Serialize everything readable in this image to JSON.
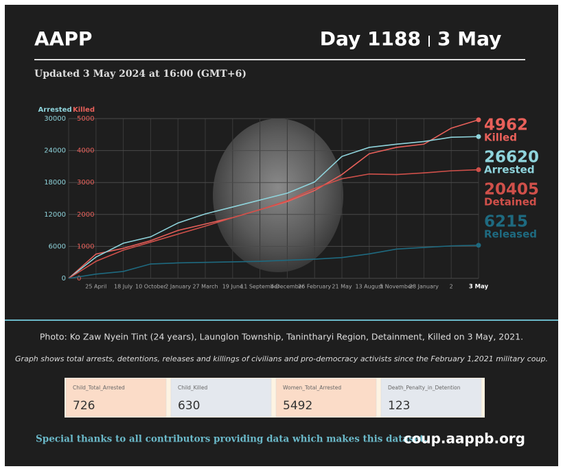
{
  "header": {
    "title": "AAPP",
    "day": "Day 1188",
    "date": "3 May",
    "updated": "Updated 3 May 2024 at 16:00 (GMT+6)"
  },
  "chart_data": {
    "type": "line",
    "y_label": "Arrested",
    "y2_label": "Killed",
    "categories": [
      null,
      "25 April",
      "18 July",
      "10 October",
      "2 January",
      "27 March",
      "19 June",
      "11 September",
      "4 December",
      "26 February",
      "21 May",
      "13 August",
      "5 November",
      "28 January",
      "2",
      "3 May"
    ],
    "ylim": [
      0,
      30000
    ],
    "yticks": [
      0,
      6000,
      12000,
      18000,
      24000,
      30000
    ],
    "y2lim": [
      0,
      5000
    ],
    "y2ticks": [
      0,
      1000,
      2000,
      3000,
      4000,
      5000
    ],
    "grid": true,
    "series": [
      {
        "name": "Killed",
        "color": "#e8605a",
        "axis": "y2",
        "values": [
          0,
          760,
          940,
          1180,
          1500,
          1700,
          1900,
          2150,
          2400,
          2750,
          3250,
          3900,
          4100,
          4200,
          4700,
          4962
        ]
      },
      {
        "name": "Arrested",
        "color": "#8fd4dc",
        "values": [
          0,
          4000,
          6600,
          7800,
          10400,
          12100,
          13400,
          14700,
          16000,
          18100,
          22900,
          24600,
          25200,
          25700,
          26500,
          26620
        ]
      },
      {
        "name": "Detained",
        "color": "#d0504a",
        "values": [
          0,
          3200,
          5300,
          6800,
          8300,
          9800,
          11400,
          12900,
          14600,
          16900,
          18700,
          19600,
          19500,
          19800,
          20200,
          20405
        ]
      },
      {
        "name": "Released",
        "color": "#1e6a80",
        "values": [
          0,
          800,
          1300,
          2700,
          2900,
          3000,
          3100,
          3200,
          3400,
          3600,
          3900,
          4600,
          5500,
          5800,
          6100,
          6215
        ]
      }
    ]
  },
  "caption": "Photo: Ko Zaw Nyein Tint (24 years), Launglon Township, Tanintharyi Region, Detainment, Killed on 3 May, 2021.",
  "note": "Graph shows total arrests, detentions, releases and killings of civilians and pro-democracy activists since the February 1,2021 military coup.",
  "stats": [
    {
      "label": "Child_Total_Arrested",
      "value": 726
    },
    {
      "label": "Child_Killed",
      "value": 630
    },
    {
      "label": "Women_Total_Arrested",
      "value": 5492
    },
    {
      "label": "Death_Penalty_in_Detention",
      "value": 123
    }
  ],
  "footer": {
    "thanks": "Special thanks to all contributors providing data which makes this dataset.",
    "url": "coup.aappb.org"
  }
}
